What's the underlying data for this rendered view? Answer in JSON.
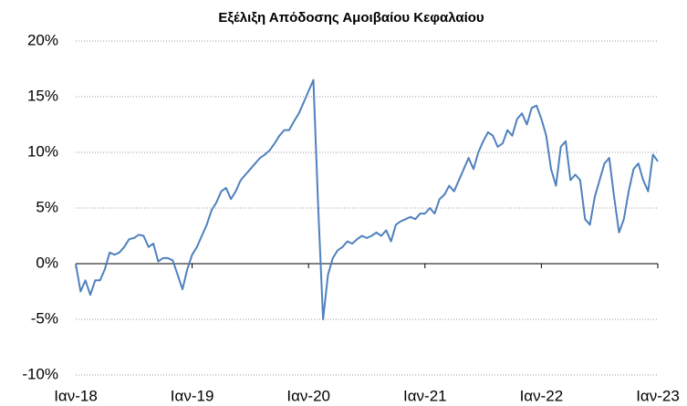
{
  "chart_data": {
    "type": "line",
    "title": "Εξέλιξη Απόδοσης Αμοιβαίου Κεφαλαίου",
    "categories": [
      "Ιαν-18",
      null,
      null,
      null,
      null,
      null,
      null,
      null,
      null,
      null,
      null,
      null,
      null,
      null,
      null,
      null,
      null,
      null,
      null,
      null,
      null,
      null,
      null,
      null,
      "Ιαν-19",
      null,
      null,
      null,
      null,
      null,
      null,
      null,
      null,
      null,
      null,
      null,
      null,
      null,
      null,
      null,
      null,
      null,
      null,
      null,
      null,
      null,
      null,
      null,
      "Ιαν-20",
      null,
      null,
      null,
      null,
      null,
      null,
      null,
      null,
      null,
      null,
      null,
      null,
      null,
      null,
      null,
      null,
      null,
      null,
      null,
      null,
      null,
      null,
      null,
      "Ιαν-21",
      null,
      null,
      null,
      null,
      null,
      null,
      null,
      null,
      null,
      null,
      null,
      null,
      null,
      null,
      null,
      null,
      null,
      null,
      null,
      null,
      null,
      null,
      null,
      "Ιαν-22",
      null,
      null,
      null,
      null,
      null,
      null,
      null,
      null,
      null,
      null,
      null,
      null,
      null,
      null,
      null,
      null,
      null,
      null,
      null,
      null,
      null,
      null,
      null,
      "Ιαν-23"
    ],
    "series": [
      {
        "color": "#4f81bd",
        "values": [
          0,
          -2.5,
          -1.5,
          -2.8,
          -1.5,
          -1.5,
          -0.5,
          1.0,
          0.8,
          1.0,
          1.5,
          2.2,
          2.3,
          2.6,
          2.5,
          1.5,
          1.8,
          0.2,
          0.5,
          0.5,
          0.3,
          -1.0,
          -2.3,
          -0.5,
          0.8,
          1.5,
          2.5,
          3.5,
          4.8,
          5.5,
          6.5,
          6.8,
          5.8,
          6.5,
          7.5,
          8.0,
          8.5,
          9.0,
          9.5,
          9.8,
          10.2,
          10.8,
          11.5,
          12.0,
          12.0,
          12.8,
          13.5,
          14.5,
          15.5,
          16.5,
          5,
          -5,
          -1,
          0.5,
          1.2,
          1.5,
          2.0,
          1.8,
          2.2,
          2.5,
          2.3,
          2.5,
          2.8,
          2.5,
          3.0,
          2.0,
          3.5,
          3.8,
          4.0,
          4.2,
          4.0,
          4.5,
          4.5,
          5.0,
          4.5,
          5.8,
          6.2,
          7.0,
          6.5,
          7.5,
          8.5,
          9.5,
          8.5,
          10.0,
          11.0,
          11.8,
          11.5,
          10.5,
          10.8,
          12.0,
          11.5,
          13.0,
          13.5,
          12.5,
          14.0,
          14.2,
          13.0,
          11.5,
          8.5,
          7.0,
          10.5,
          11.0,
          7.5,
          8.0,
          7.5,
          4.0,
          3.5,
          6.0,
          7.5,
          9.0,
          9.5,
          6.0,
          2.8,
          4.0,
          6.5,
          8.5,
          9.0,
          7.5,
          6.5,
          9.8,
          9.2
        ]
      }
    ],
    "ylim": [
      -10,
      20
    ],
    "yticks": [
      {
        "value": -10,
        "label": "-10%"
      },
      {
        "value": -5,
        "label": "-5%"
      },
      {
        "value": 0,
        "label": "0%"
      },
      {
        "value": 5,
        "label": "5%"
      },
      {
        "value": 10,
        "label": "10%"
      },
      {
        "value": 15,
        "label": "15%"
      },
      {
        "value": 20,
        "label": "20%"
      }
    ],
    "grid": true
  }
}
